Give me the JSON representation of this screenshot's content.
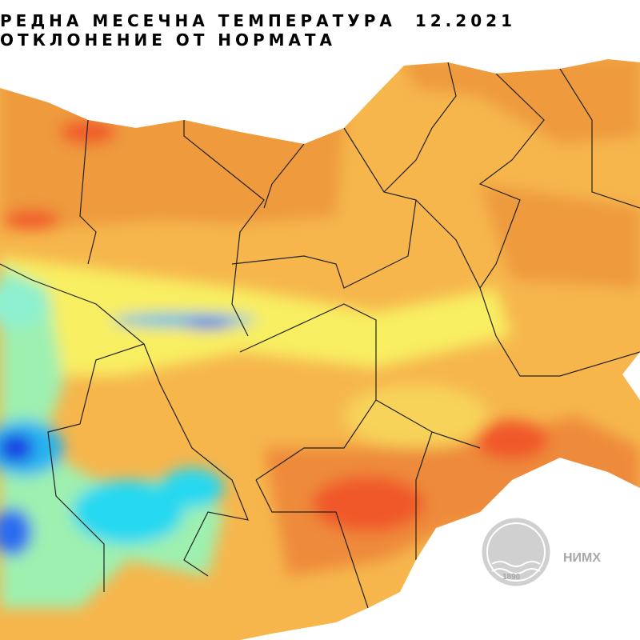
{
  "title": {
    "line1": "РЕДНА МЕСЕЧНА ТЕМПЕРАТУРА  12.2021",
    "line2": "ОТКЛОНЕНИЕ ОТ НОРМАТА"
  },
  "logo": {
    "text": "НИМХ",
    "year": "1890"
  }
}
